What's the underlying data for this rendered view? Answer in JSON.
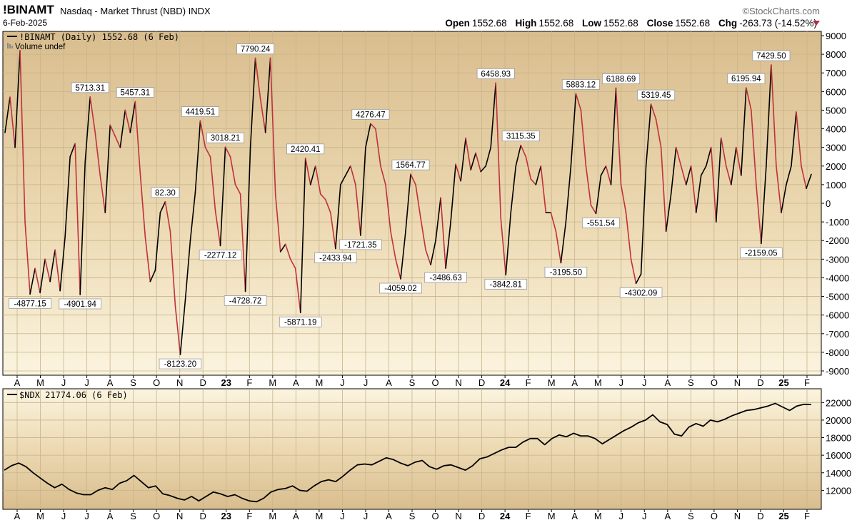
{
  "header": {
    "symbol": "!BINAMT",
    "description": "Nasdaq - Market Thrust (NBD)  INDX",
    "date": "6-Feb-2025",
    "brand": "©StockCharts.com",
    "open_label": "Open",
    "open": "1552.68",
    "high_label": "High",
    "high": "1552.68",
    "low_label": "Low",
    "low": "1552.68",
    "close_label": "Close",
    "close": "1552.68",
    "chg_label": "Chg",
    "chg": "-263.73 (-14.52%)",
    "colors": {
      "down_triangle": "#b03040"
    }
  },
  "chart_data": [
    {
      "type": "line",
      "legend": "!BINAMT (Daily) 1552.68 (6 Feb)",
      "volume_note": "Volume undef",
      "ylim": [
        -9000,
        9000
      ],
      "yticks": [
        "9000",
        "8000",
        "7000",
        "6000",
        "5000",
        "4000",
        "3000",
        "2000",
        "1000",
        "0",
        "-1000",
        "-2000",
        "-3000",
        "-4000",
        "-5000",
        "-6000",
        "-7000",
        "-8000",
        "-9000"
      ],
      "xticks": [
        "A",
        "M",
        "J",
        "J",
        "A",
        "S",
        "O",
        "N",
        "D",
        "23",
        "F",
        "M",
        "A",
        "M",
        "J",
        "J",
        "A",
        "S",
        "O",
        "N",
        "D",
        "24",
        "F",
        "M",
        "A",
        "M",
        "J",
        "J",
        "A",
        "S",
        "O",
        "N",
        "D",
        "25",
        "F"
      ],
      "series": [
        {
          "colors": {
            "rising": "#000000",
            "falling": "#c0303c"
          },
          "values": [
            3800,
            5700,
            3000,
            8200,
            -1000,
            -4877,
            -3500,
            -4800,
            -3000,
            -4200,
            -2500,
            -4700,
            -1800,
            2500,
            3200,
            -4902,
            2200,
            5713,
            3800,
            1500,
            -500,
            4200,
            3600,
            3000,
            5000,
            3800,
            5457,
            1600,
            -1800,
            -4200,
            -3600,
            -500,
            82,
            -1500,
            -5500,
            -8123,
            -5200,
            -2000,
            600,
            4420,
            3000,
            2500,
            -400,
            -2277,
            3018,
            2500,
            1000,
            500,
            -4729,
            3000,
            7790,
            5600,
            3800,
            7800,
            500,
            -2600,
            -2200,
            -3000,
            -3500,
            -5871,
            2420,
            1000,
            2000,
            500,
            200,
            -500,
            -2434,
            1000,
            1500,
            2000,
            1000,
            -1721,
            3000,
            4276,
            4000,
            2000,
            1000,
            -1500,
            -3000,
            -4059,
            -1500,
            1565,
            1000,
            -800,
            -2500,
            -3300,
            -2000,
            300,
            -3487,
            -1000,
            2100,
            1200,
            3500,
            1800,
            2700,
            1700,
            2000,
            3000,
            6459,
            -800,
            -3843,
            -500,
            2000,
            3115,
            2500,
            1300,
            1000,
            2000,
            -500,
            -500,
            -1500,
            -3196,
            -1000,
            2000,
            5883,
            5000,
            2000,
            -100,
            -552,
            1500,
            2000,
            1000,
            6189,
            1000,
            -500,
            -3000,
            -4302,
            -3800,
            2000,
            5319,
            4500,
            3000,
            -1500,
            500,
            3000,
            2000,
            1000,
            2000,
            -500,
            1500,
            2000,
            3000,
            -1000,
            3500,
            2000,
            1000,
            3000,
            1500,
            6196,
            5000,
            1000,
            -2159,
            2000,
            7430,
            2000,
            -500,
            1000,
            2000,
            4900,
            2000,
            800,
            1553
          ]
        }
      ],
      "annotations": [
        {
          "label": "-4877.15",
          "value": -4877,
          "i": 5
        },
        {
          "label": "-4901.94",
          "value": -4902,
          "i": 15
        },
        {
          "label": "5713.31",
          "value": 5713,
          "i": 17
        },
        {
          "label": "5457.31",
          "value": 5457,
          "i": 26
        },
        {
          "label": "82.30",
          "value": 82,
          "i": 32
        },
        {
          "label": "-8123.20",
          "value": -8123,
          "i": 35
        },
        {
          "label": "4419.51",
          "value": 4420,
          "i": 39
        },
        {
          "label": "-2277.12",
          "value": -2277,
          "i": 43
        },
        {
          "label": "3018.21",
          "value": 3018,
          "i": 44
        },
        {
          "label": "-4728.72",
          "value": -4729,
          "i": 48
        },
        {
          "label": "7790.24",
          "value": 7790,
          "i": 50
        },
        {
          "label": "-5871.19",
          "value": -5871,
          "i": 59
        },
        {
          "label": "2420.41",
          "value": 2420,
          "i": 60
        },
        {
          "label": "-2433.94",
          "value": -2434,
          "i": 66
        },
        {
          "label": "-1721.35",
          "value": -1721,
          "i": 71
        },
        {
          "label": "4276.47",
          "value": 4276,
          "i": 73
        },
        {
          "label": "-4059.02",
          "value": -4059,
          "i": 79
        },
        {
          "label": "1564.77",
          "value": 1565,
          "i": 81
        },
        {
          "label": "-3486.63",
          "value": -3487,
          "i": 88
        },
        {
          "label": "6458.93",
          "value": 6459,
          "i": 98
        },
        {
          "label": "-3842.81",
          "value": -3843,
          "i": 100
        },
        {
          "label": "3115.35",
          "value": 3115,
          "i": 103
        },
        {
          "label": "-3195.50",
          "value": -3196,
          "i": 112
        },
        {
          "label": "5883.12",
          "value": 5883,
          "i": 115
        },
        {
          "label": "-551.54",
          "value": -552,
          "i": 119
        },
        {
          "label": "6188.69",
          "value": 6189,
          "i": 123
        },
        {
          "label": "-4302.09",
          "value": -4302,
          "i": 127
        },
        {
          "label": "5319.45",
          "value": 5319,
          "i": 130
        },
        {
          "label": "6195.94",
          "value": 6196,
          "i": 148
        },
        {
          "label": "-2159.05",
          "value": -2159,
          "i": 151
        },
        {
          "label": "7429.50",
          "value": 7430,
          "i": 153
        }
      ]
    },
    {
      "type": "line",
      "legend": "$NDX 21774.06 (6 Feb)",
      "ylim": [
        10000,
        23000
      ],
      "yticks": [
        "22000",
        "20000",
        "18000",
        "16000",
        "14000",
        "12000"
      ],
      "xticks": [
        "A",
        "M",
        "J",
        "J",
        "A",
        "S",
        "O",
        "N",
        "D",
        "23",
        "F",
        "M",
        "A",
        "M",
        "J",
        "J",
        "A",
        "S",
        "O",
        "N",
        "D",
        "24",
        "F",
        "M",
        "A",
        "M",
        "J",
        "J",
        "A",
        "S",
        "O",
        "N",
        "D",
        "25",
        "F"
      ],
      "series": [
        {
          "color": "#000000",
          "values": [
            14300,
            14800,
            15100,
            14700,
            14000,
            13400,
            12800,
            12300,
            12700,
            12100,
            11700,
            11500,
            11500,
            12000,
            12300,
            12100,
            12800,
            13100,
            13700,
            13000,
            12300,
            12500,
            11600,
            11400,
            11100,
            10900,
            11300,
            10800,
            11300,
            11800,
            11600,
            11300,
            11500,
            11100,
            10800,
            10700,
            11100,
            11800,
            12100,
            12200,
            12500,
            12000,
            11900,
            12500,
            13000,
            13200,
            13000,
            13600,
            14300,
            14900,
            15000,
            14900,
            15300,
            15700,
            15500,
            15100,
            14800,
            15200,
            15400,
            14700,
            14400,
            14800,
            14900,
            14600,
            14300,
            14800,
            15600,
            15800,
            16200,
            16600,
            16900,
            16900,
            17500,
            17900,
            17900,
            17200,
            17900,
            18300,
            18100,
            18500,
            18200,
            18200,
            17900,
            17300,
            17800,
            18300,
            18800,
            19200,
            19700,
            20000,
            20600,
            19800,
            19500,
            18400,
            18200,
            19200,
            19600,
            19300,
            20000,
            19800,
            20100,
            20500,
            20800,
            21100,
            21200,
            21400,
            21600,
            21900,
            21500,
            21100,
            21600,
            21800,
            21774
          ]
        }
      ]
    }
  ]
}
